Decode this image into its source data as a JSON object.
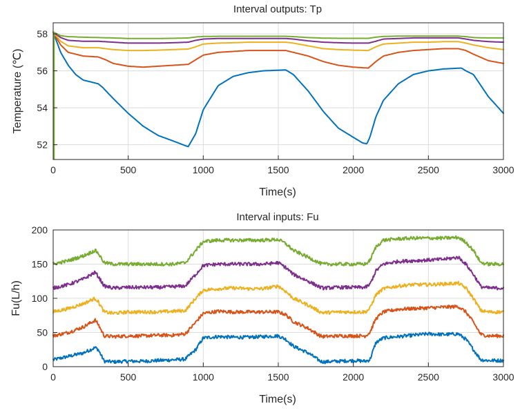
{
  "chart_data": [
    {
      "type": "line",
      "title": "Interval outputs: Tp",
      "xlabel": "Time(s)",
      "ylabel": "Temperature (℃)",
      "xlim": [
        0,
        3000
      ],
      "ylim": [
        51.2,
        58.6
      ],
      "xticks": [
        0,
        500,
        1000,
        1500,
        2000,
        2500,
        3000
      ],
      "yticks": [
        52,
        54,
        56,
        58
      ],
      "grid": true,
      "series": [
        {
          "color": "#0072BD",
          "x": [
            0,
            50,
            100,
            150,
            200,
            250,
            300,
            330,
            400,
            500,
            600,
            700,
            800,
            880,
            900,
            950,
            1000,
            1100,
            1200,
            1300,
            1400,
            1550,
            1600,
            1700,
            1800,
            1900,
            2000,
            2060,
            2090,
            2110,
            2150,
            2200,
            2300,
            2400,
            2500,
            2600,
            2720,
            2750,
            2800,
            2900,
            3000
          ],
          "y": [
            58.1,
            57.0,
            56.3,
            55.8,
            55.5,
            55.4,
            55.3,
            55.1,
            54.5,
            53.7,
            53.0,
            52.5,
            52.2,
            51.95,
            51.9,
            52.6,
            53.9,
            55.2,
            55.7,
            55.9,
            56.0,
            56.05,
            55.8,
            54.9,
            53.8,
            52.9,
            52.4,
            52.1,
            52.05,
            52.4,
            53.5,
            54.4,
            55.3,
            55.8,
            56.0,
            56.1,
            56.15,
            56.0,
            55.8,
            54.6,
            53.7
          ]
        },
        {
          "color": "#D95319",
          "x": [
            0,
            50,
            100,
            200,
            300,
            350,
            400,
            500,
            600,
            700,
            800,
            900,
            950,
            1000,
            1100,
            1200,
            1300,
            1400,
            1550,
            1600,
            1700,
            1800,
            1900,
            2000,
            2100,
            2150,
            2200,
            2300,
            2400,
            2500,
            2600,
            2700,
            2750,
            2800,
            2900,
            3000
          ],
          "y": [
            58.1,
            57.4,
            57.0,
            56.8,
            56.75,
            56.6,
            56.4,
            56.25,
            56.2,
            56.25,
            56.3,
            56.35,
            56.6,
            56.85,
            57.0,
            57.05,
            57.1,
            57.1,
            57.1,
            57.0,
            56.8,
            56.5,
            56.3,
            56.2,
            56.15,
            56.5,
            56.8,
            57.0,
            57.1,
            57.15,
            57.2,
            57.2,
            57.1,
            56.9,
            56.55,
            56.4
          ]
        },
        {
          "color": "#EDB120",
          "x": [
            0,
            50,
            100,
            200,
            300,
            350,
            400,
            500,
            600,
            700,
            800,
            900,
            950,
            1000,
            1100,
            1200,
            1300,
            1400,
            1550,
            1600,
            1700,
            1800,
            1900,
            2000,
            2100,
            2150,
            2200,
            2300,
            2400,
            2500,
            2600,
            2700,
            2750,
            2800,
            2900,
            3000
          ],
          "y": [
            58.1,
            57.6,
            57.35,
            57.25,
            57.25,
            57.2,
            57.15,
            57.1,
            57.1,
            57.12,
            57.15,
            57.18,
            57.3,
            57.45,
            57.5,
            57.52,
            57.55,
            57.55,
            57.55,
            57.5,
            57.35,
            57.2,
            57.15,
            57.12,
            57.1,
            57.3,
            57.45,
            57.5,
            57.55,
            57.55,
            57.58,
            57.58,
            57.5,
            57.4,
            57.25,
            57.15
          ]
        },
        {
          "color": "#7E2F8E",
          "x": [
            0,
            50,
            100,
            200,
            300,
            400,
            500,
            600,
            700,
            800,
            900,
            950,
            1000,
            1100,
            1200,
            1300,
            1400,
            1550,
            1600,
            1700,
            1800,
            1900,
            2000,
            2100,
            2150,
            2200,
            2300,
            2400,
            2500,
            2600,
            2700,
            2750,
            2800,
            2900,
            3000
          ],
          "y": [
            58.1,
            57.8,
            57.65,
            57.6,
            57.6,
            57.55,
            57.5,
            57.5,
            57.5,
            57.52,
            57.55,
            57.65,
            57.72,
            57.75,
            57.75,
            57.75,
            57.75,
            57.75,
            57.72,
            57.62,
            57.55,
            57.52,
            57.5,
            57.5,
            57.6,
            57.72,
            57.75,
            57.78,
            57.78,
            57.78,
            57.78,
            57.72,
            57.65,
            57.58,
            57.55
          ]
        },
        {
          "color": "#77AC30",
          "x": [
            0,
            50,
            100,
            200,
            300,
            400,
            500,
            600,
            700,
            800,
            900,
            950,
            1000,
            1100,
            1200,
            1300,
            1400,
            1550,
            1600,
            1700,
            1800,
            1900,
            2000,
            2100,
            2150,
            2200,
            2300,
            2400,
            2500,
            2600,
            2700,
            2750,
            2800,
            2900,
            3000
          ],
          "y": [
            58.1,
            57.9,
            57.85,
            57.82,
            57.8,
            57.78,
            57.75,
            57.75,
            57.75,
            57.76,
            57.78,
            57.83,
            57.86,
            57.87,
            57.87,
            57.87,
            57.87,
            57.87,
            57.85,
            57.8,
            57.77,
            57.76,
            57.76,
            57.76,
            57.82,
            57.86,
            57.88,
            57.88,
            57.88,
            57.88,
            57.88,
            57.85,
            57.8,
            57.78,
            57.78
          ]
        }
      ]
    },
    {
      "type": "line",
      "title": "Interval inputs: Fu",
      "xlabel": "Time(s)",
      "ylabel": "Fu(L/h)",
      "xlim": [
        0,
        3000
      ],
      "ylim": [
        0,
        200
      ],
      "xticks": [
        0,
        500,
        1000,
        1500,
        2000,
        2500,
        3000
      ],
      "yticks": [
        0,
        50,
        100,
        150,
        200
      ],
      "grid": true,
      "series": [
        {
          "color": "#0072BD",
          "x": [
            0,
            100,
            200,
            280,
            300,
            340,
            400,
            500,
            600,
            700,
            800,
            880,
            950,
            1000,
            1100,
            1200,
            1300,
            1400,
            1500,
            1550,
            1600,
            1700,
            1780,
            1800,
            1900,
            2000,
            2080,
            2110,
            2150,
            2200,
            2300,
            2400,
            2500,
            2600,
            2700,
            2750,
            2800,
            2850,
            2900,
            3000
          ],
          "y": [
            10,
            15,
            20,
            28,
            25,
            8,
            7,
            8,
            8,
            9,
            10,
            11,
            25,
            42,
            44,
            43,
            43,
            44,
            45,
            40,
            30,
            20,
            8,
            7,
            8,
            9,
            8,
            10,
            35,
            42,
            44,
            46,
            48,
            47,
            48,
            40,
            25,
            10,
            9,
            9
          ]
        },
        {
          "color": "#D95319",
          "x": [
            0,
            100,
            200,
            280,
            300,
            340,
            400,
            500,
            600,
            700,
            800,
            880,
            950,
            1000,
            1100,
            1200,
            1300,
            1400,
            1500,
            1550,
            1600,
            1700,
            1780,
            1800,
            1900,
            2000,
            2080,
            2110,
            2150,
            2200,
            2300,
            2400,
            2500,
            2600,
            2700,
            2750,
            2800,
            2850,
            2900,
            3000
          ],
          "y": [
            45,
            50,
            58,
            68,
            62,
            45,
            44,
            45,
            45,
            46,
            46,
            48,
            65,
            78,
            81,
            80,
            80,
            80,
            80,
            76,
            66,
            56,
            45,
            44,
            45,
            45,
            45,
            50,
            70,
            80,
            84,
            85,
            86,
            87,
            88,
            80,
            65,
            47,
            45,
            45
          ]
        },
        {
          "color": "#EDB120",
          "x": [
            0,
            100,
            200,
            280,
            300,
            340,
            400,
            500,
            600,
            700,
            800,
            880,
            950,
            1000,
            1100,
            1200,
            1300,
            1400,
            1500,
            1550,
            1600,
            1700,
            1780,
            1800,
            1900,
            2000,
            2080,
            2110,
            2150,
            2200,
            2300,
            2400,
            2500,
            2600,
            2700,
            2750,
            2800,
            2850,
            2900,
            3000
          ],
          "y": [
            80,
            85,
            92,
            100,
            95,
            80,
            78,
            80,
            80,
            80,
            81,
            82,
            100,
            112,
            114,
            115,
            114,
            114,
            118,
            110,
            100,
            90,
            80,
            79,
            80,
            80,
            80,
            85,
            105,
            114,
            118,
            120,
            120,
            121,
            122,
            115,
            100,
            82,
            80,
            80
          ]
        },
        {
          "color": "#7E2F8E",
          "x": [
            0,
            100,
            200,
            280,
            300,
            340,
            400,
            500,
            600,
            700,
            800,
            880,
            950,
            1000,
            1100,
            1200,
            1300,
            1400,
            1500,
            1550,
            1600,
            1700,
            1780,
            1800,
            1900,
            2000,
            2080,
            2110,
            2150,
            2200,
            2300,
            2400,
            2500,
            2600,
            2700,
            2750,
            2800,
            2850,
            2900,
            3000
          ],
          "y": [
            115,
            120,
            128,
            138,
            132,
            118,
            115,
            116,
            116,
            116,
            117,
            118,
            135,
            148,
            150,
            150,
            150,
            150,
            152,
            145,
            135,
            125,
            116,
            115,
            116,
            116,
            116,
            120,
            140,
            150,
            154,
            155,
            156,
            157,
            160,
            150,
            135,
            117,
            115,
            115
          ]
        },
        {
          "color": "#77AC30",
          "x": [
            0,
            100,
            200,
            280,
            300,
            340,
            400,
            500,
            600,
            700,
            800,
            880,
            950,
            1000,
            1100,
            1200,
            1300,
            1400,
            1500,
            1550,
            1600,
            1700,
            1780,
            1800,
            1900,
            2000,
            2080,
            2110,
            2150,
            2200,
            2300,
            2400,
            2500,
            2600,
            2700,
            2750,
            2800,
            2850,
            2900,
            3000
          ],
          "y": [
            150,
            155,
            162,
            170,
            166,
            152,
            150,
            150,
            150,
            150,
            150,
            152,
            170,
            183,
            185,
            185,
            185,
            185,
            186,
            180,
            170,
            160,
            151,
            150,
            150,
            150,
            150,
            155,
            175,
            185,
            187,
            188,
            188,
            188,
            189,
            182,
            170,
            152,
            150,
            150
          ]
        }
      ]
    }
  ]
}
